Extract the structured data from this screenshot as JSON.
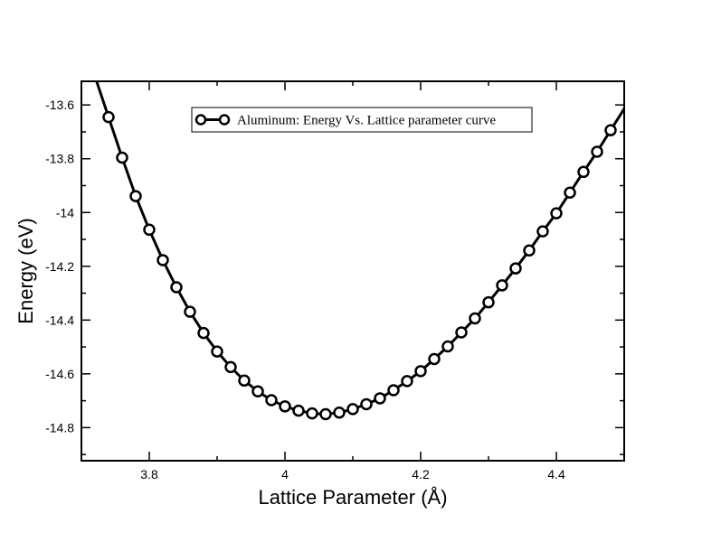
{
  "chart_data": {
    "type": "line",
    "title": "",
    "xlabel": "Lattice Parameter (Å)",
    "ylabel": "Energy (eV)",
    "xlim": [
      3.7,
      4.5
    ],
    "ylim": [
      -14.923,
      -13.512
    ],
    "xticks": [
      3.8,
      4.0,
      4.2,
      4.4
    ],
    "xtick_labels": [
      "3.8",
      "4",
      "4.2",
      "4.4"
    ],
    "yticks": [
      -13.6,
      -13.8,
      -14.0,
      -14.2,
      -14.4,
      -14.6,
      -14.8
    ],
    "ytick_labels": [
      "-13.6",
      "-13.8",
      "-14",
      "-14.2",
      "-14.4",
      "-14.6",
      "-14.8"
    ],
    "grid": false,
    "legend_position": "top-center",
    "line_color": "#000000",
    "marker": "open-circle",
    "series": [
      {
        "name": "Aluminum: Energy Vs. Lattice parameter curve",
        "x": [
          3.74,
          3.76,
          3.78,
          3.8,
          3.82,
          3.84,
          3.86,
          3.88,
          3.9,
          3.92,
          3.94,
          3.96,
          3.98,
          4.0,
          4.02,
          4.04,
          4.06,
          4.08,
          4.1,
          4.12,
          4.14,
          4.16,
          4.18,
          4.2,
          4.22,
          4.24,
          4.26,
          4.28,
          4.3,
          4.32,
          4.34,
          4.36,
          4.38,
          4.4,
          4.42,
          4.44,
          4.46,
          4.48
        ],
        "y": [
          -13.645,
          -13.796,
          -13.939,
          -14.064,
          -14.177,
          -14.278,
          -14.369,
          -14.448,
          -14.517,
          -14.575,
          -14.625,
          -14.665,
          -14.698,
          -14.721,
          -14.737,
          -14.747,
          -14.75,
          -14.744,
          -14.731,
          -14.713,
          -14.691,
          -14.661,
          -14.627,
          -14.59,
          -14.545,
          -14.498,
          -14.446,
          -14.394,
          -14.334,
          -14.271,
          -14.208,
          -14.141,
          -14.07,
          -14.003,
          -13.926,
          -13.849,
          -13.774,
          -13.694
        ]
      }
    ]
  }
}
